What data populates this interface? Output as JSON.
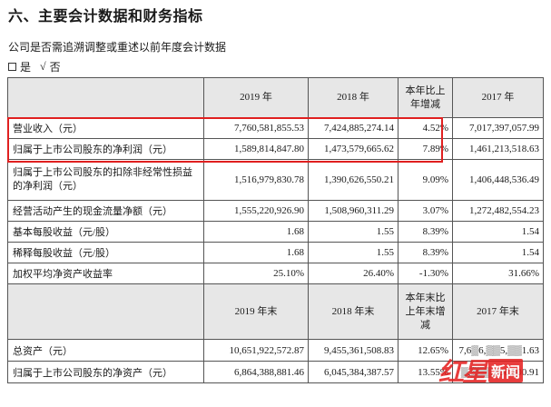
{
  "section_title": "六、主要会计数据和财务指标",
  "question": "公司是否需追溯调整或重述以前年度会计数据",
  "answer": {
    "yes_label": "是",
    "check_mark": "√",
    "no_label": "否"
  },
  "table1": {
    "headers": [
      "",
      "2019 年",
      "2018 年",
      "本年比上年增减",
      "2017 年"
    ],
    "rows": [
      {
        "label": "营业收入（元）",
        "v2019": "7,760,581,855.53",
        "v2018": "7,424,885,274.14",
        "change": "4.52%",
        "v2017": "7,017,397,057.99"
      },
      {
        "label": "归属于上市公司股东的净利润（元）",
        "v2019": "1,589,814,847.80",
        "v2018": "1,473,579,665.62",
        "change": "7.89%",
        "v2017": "1,461,213,518.63"
      },
      {
        "label": "归属于上市公司股东的扣除非经常性损益的净利润（元）",
        "v2019": "1,516,979,830.78",
        "v2018": "1,390,626,550.21",
        "change": "9.09%",
        "v2017": "1,406,448,536.49"
      },
      {
        "label": "经营活动产生的现金流量净额（元）",
        "v2019": "1,555,220,926.90",
        "v2018": "1,508,960,311.29",
        "change": "3.07%",
        "v2017": "1,272,482,554.23"
      },
      {
        "label": "基本每股收益（元/股）",
        "v2019": "1.68",
        "v2018": "1.55",
        "change": "8.39%",
        "v2017": "1.54"
      },
      {
        "label": "稀释每股收益（元/股）",
        "v2019": "1.68",
        "v2018": "1.55",
        "change": "8.39%",
        "v2017": "1.54"
      },
      {
        "label": "加权平均净资产收益率",
        "v2019": "25.10%",
        "v2018": "26.40%",
        "change": "-1.30%",
        "v2017": "31.66%"
      }
    ]
  },
  "table2": {
    "headers": [
      "",
      "2019 年末",
      "2018 年末",
      "本年末比上年末增减",
      "2017 年末"
    ],
    "rows": [
      {
        "label": "总资产（元）",
        "v2019": "10,651,922,572.87",
        "v2018": "9,455,361,508.83",
        "change": "12.65%",
        "v2017": "7,6▒6,▒▒5,▒▒1.63"
      },
      {
        "label": "归属于上市公司股东的净资产（元）",
        "v2019": "6,864,388,881.46",
        "v2018": "6,045,384,387.57",
        "change": "13.55%",
        "v2017": "▒,▒▒▒,800,800.91"
      }
    ]
  },
  "watermark": {
    "brand": "红星",
    "tag": "新闻"
  }
}
